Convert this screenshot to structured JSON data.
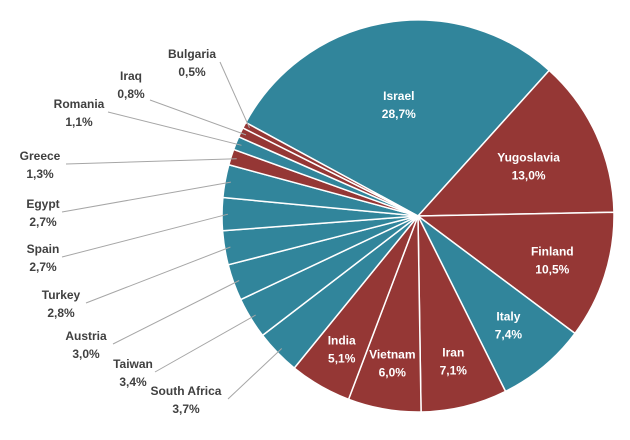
{
  "chart_data": {
    "type": "pie",
    "title": "",
    "unit": "%",
    "colors": {
      "teal": "#31859b",
      "red": "#953735",
      "border": "#ffffff",
      "leader": "#a6a6a6",
      "outside_text": "#404040"
    },
    "slices": [
      {
        "name": "Israel",
        "label": "Israel",
        "value": 28.7,
        "value_text": "28,7%",
        "color": "teal",
        "label_position": "inside"
      },
      {
        "name": "Yugoslavia",
        "label": "Yugoslavia",
        "value": 13.0,
        "value_text": "13,0%",
        "color": "red",
        "label_position": "inside"
      },
      {
        "name": "Finland",
        "label": "Finland",
        "value": 10.5,
        "value_text": "10,5%",
        "color": "red",
        "label_position": "inside"
      },
      {
        "name": "Italy",
        "label": "Italy",
        "value": 7.4,
        "value_text": "7,4%",
        "color": "teal",
        "label_position": "inside"
      },
      {
        "name": "Iran",
        "label": "Iran",
        "value": 7.1,
        "value_text": "7,1%",
        "color": "red",
        "label_position": "inside"
      },
      {
        "name": "Vietnam",
        "label": "Vietnam",
        "value": 6.0,
        "value_text": "6,0%",
        "color": "red",
        "label_position": "inside"
      },
      {
        "name": "India",
        "label": "India",
        "value": 5.1,
        "value_text": "5,1%",
        "color": "red",
        "label_position": "inside"
      },
      {
        "name": "South Africa",
        "label": "South Africa",
        "value": 3.7,
        "value_text": "3,7%",
        "color": "teal",
        "label_position": "outside"
      },
      {
        "name": "Taiwan",
        "label": "Taiwan",
        "value": 3.4,
        "value_text": "3,4%",
        "color": "teal",
        "label_position": "outside"
      },
      {
        "name": "Austria",
        "label": "Austria",
        "value": 3.0,
        "value_text": "3,0%",
        "color": "teal",
        "label_position": "outside"
      },
      {
        "name": "Turkey",
        "label": "Turkey",
        "value": 2.8,
        "value_text": "2,8%",
        "color": "teal",
        "label_position": "outside"
      },
      {
        "name": "Spain",
        "label": "Spain",
        "value": 2.7,
        "value_text": "2,7%",
        "color": "teal",
        "label_position": "outside"
      },
      {
        "name": "Egypt",
        "label": "Egypt",
        "value": 2.7,
        "value_text": "2,7%",
        "color": "teal",
        "label_position": "outside"
      },
      {
        "name": "Greece",
        "label": "Greece",
        "value": 1.3,
        "value_text": "1,3%",
        "color": "red",
        "label_position": "outside"
      },
      {
        "name": "Romania",
        "label": "Romania",
        "value": 1.1,
        "value_text": "1,1%",
        "color": "teal",
        "label_position": "outside"
      },
      {
        "name": "Iraq",
        "label": "Iraq",
        "value": 0.8,
        "value_text": "0,8%",
        "color": "red",
        "label_position": "outside"
      },
      {
        "name": "Bulgaria",
        "label": "Bulgaria",
        "value": 0.5,
        "value_text": "0,5%",
        "color": "red",
        "label_position": "outside"
      }
    ]
  }
}
